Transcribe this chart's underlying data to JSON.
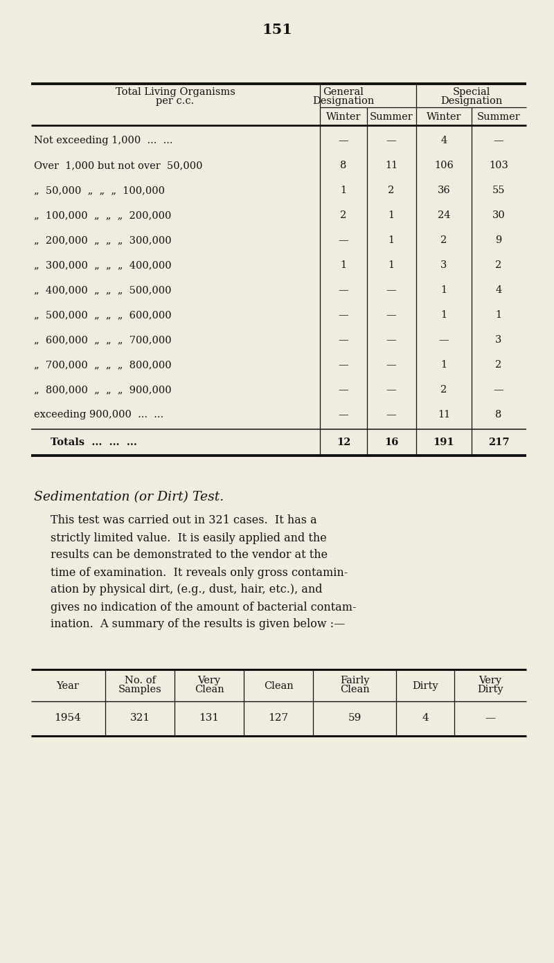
{
  "page_number": "151",
  "bg_color": "#f0ece0",
  "text_color": "#1a1a1a",
  "table1_rows": [
    [
      "Not exceeding 1,000  ...  ...",
      "—",
      "—",
      "4",
      "—"
    ],
    [
      "Over  1,000 but not over  50,000",
      "8",
      "11",
      "106",
      "103"
    ],
    [
      "„  50,000  „  „  „  100,000",
      "1",
      "2",
      "36",
      "55"
    ],
    [
      "„  100,000  „  „  „  200,000",
      "2",
      "1",
      "24",
      "30"
    ],
    [
      "„  200,000  „  „  „  300,000",
      "—",
      "1",
      "2",
      "9"
    ],
    [
      "„  300,000  „  „  „  400,000",
      "1",
      "1",
      "3",
      "2"
    ],
    [
      "„  400,000  „  „  „  500,000",
      "—",
      "—",
      "1",
      "4"
    ],
    [
      "„  500,000  „  „  „  600,000",
      "—",
      "—",
      "1",
      "1"
    ],
    [
      "„  600,000  „  „  „  700,000",
      "—",
      "—",
      "—",
      "3"
    ],
    [
      "„  700,000  „  „  „  800,000",
      "—",
      "—",
      "1",
      "2"
    ],
    [
      "„  800,000  „  „  „  900,000",
      "—",
      "—",
      "2",
      "—"
    ],
    [
      "exceeding 900,000  ...  ...",
      "—",
      "—",
      "11",
      "8"
    ]
  ],
  "totals_row": [
    "Totals  ...  ...  ...",
    "12",
    "16",
    "191",
    "217"
  ],
  "sed_title": "Sedimentation (or Dirt) Test.",
  "para_lines": [
    "This test was carried out in 321 cases.  It has a",
    "strictly limited value.  It is easily applied and the",
    "results can be demonstrated to the vendor at the",
    "time of examination.  It reveals only gross contamin-",
    "ation by physical dirt, (e.g., dust, hair, etc.), and",
    "gives no indication of the amount of bacterial contam-",
    "ination.  A summary of the results is given below :—"
  ],
  "table2_headers": [
    "Year",
    "No. of\nSamples",
    "Very\nClean",
    "Clean",
    "Fairly\nClean",
    "Dirty",
    "Very\nDirty"
  ],
  "table2_row": [
    "1954",
    "321",
    "131",
    "127",
    "59",
    "4",
    "—"
  ]
}
